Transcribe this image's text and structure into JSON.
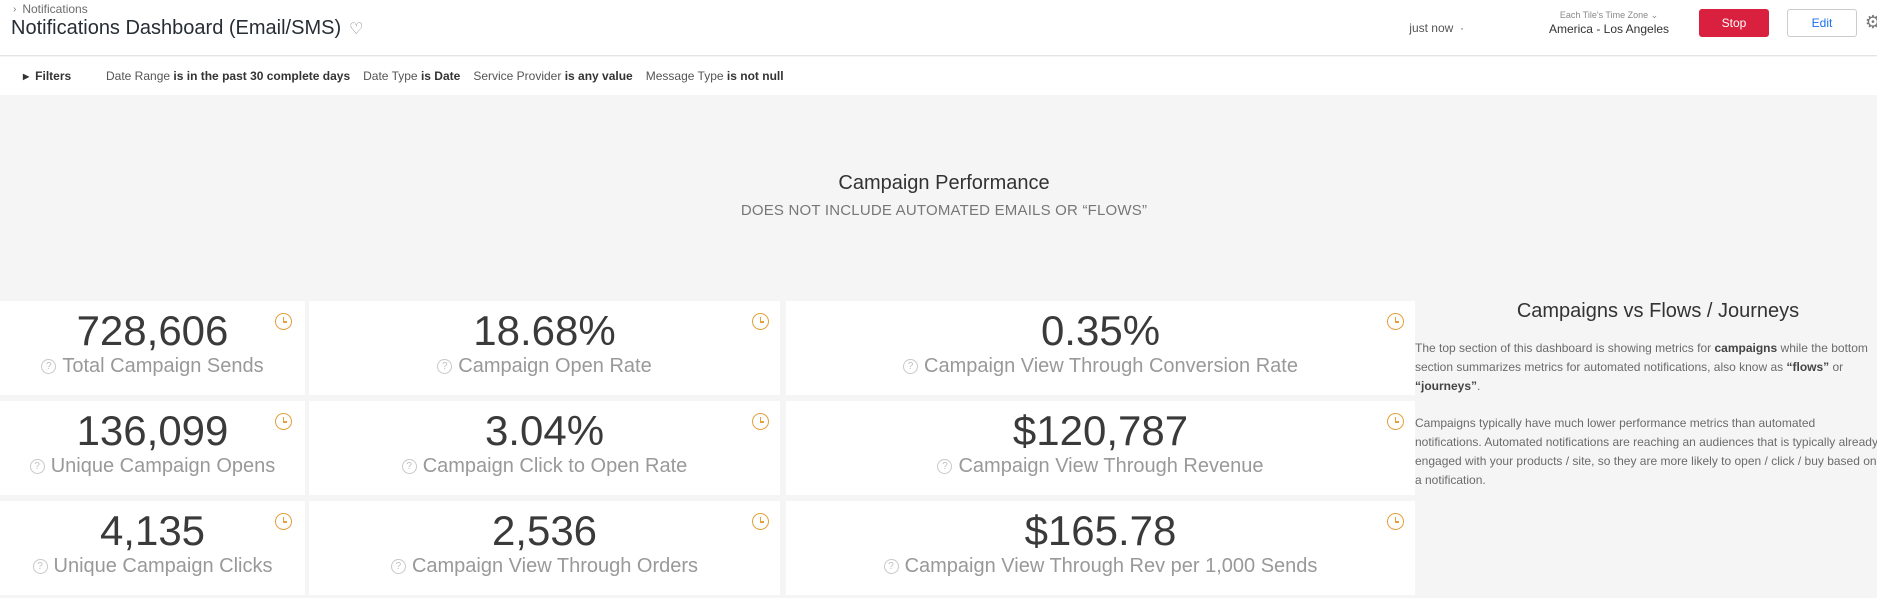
{
  "header": {
    "breadcrumb": "Notifications",
    "title": "Notifications Dashboard (Email/SMS)",
    "updated": "just now",
    "timezone_caption": "Each Tile's Time Zone",
    "timezone_value": "America - Los Angeles",
    "stop_label": "Stop",
    "edit_label": "Edit"
  },
  "filters": {
    "label": "Filters",
    "items": [
      {
        "name": "Date Range",
        "value": "is in the past 30 complete days"
      },
      {
        "name": "Date Type",
        "value": "is Date"
      },
      {
        "name": "Service Provider",
        "value": "is any value"
      },
      {
        "name": "Message Type",
        "value": "is not null"
      }
    ]
  },
  "section": {
    "title": "Campaign Performance",
    "subtitle": "DOES NOT INCLUDE AUTOMATED EMAILS OR “FLOWS”"
  },
  "tiles": [
    {
      "value": "728,606",
      "label": "Total Campaign Sends"
    },
    {
      "value": "18.68%",
      "label": "Campaign Open Rate"
    },
    {
      "value": "0.35%",
      "label": "Campaign View Through Conversion Rate"
    },
    {
      "value": "136,099",
      "label": "Unique Campaign Opens"
    },
    {
      "value": "3.04%",
      "label": "Campaign Click to Open Rate"
    },
    {
      "value": "$120,787",
      "label": "Campaign View Through Revenue"
    },
    {
      "value": "4,135",
      "label": "Unique Campaign Clicks"
    },
    {
      "value": "2,536",
      "label": "Campaign View Through Orders"
    },
    {
      "value": "$165.78",
      "label": "Campaign View Through Rev per 1,000 Sends"
    }
  ],
  "side": {
    "title": "Campaigns vs Flows / Journeys",
    "p1_a": "The top section of this dashboard is showing metrics for ",
    "p1_b": "campaigns",
    "p1_c": " while the bottom section summarizes metrics for automated notifications, also know as ",
    "p1_d": "“flows”",
    "p1_e": " or ",
    "p1_f": "“journeys”",
    "p1_g": ".",
    "p2": "Campaigns typically have much lower performance metrics than automated notifications. Automated notifications are reaching an audiences that is typically already engaged with your products / site, so they are more likely to open / click / buy based on a notification."
  },
  "icons": {
    "heart": "heart-icon",
    "gear": "gear-icon",
    "clock": "clock-icon",
    "help": "help-icon"
  },
  "colors": {
    "stop": "#d9203f",
    "edit_text": "#1a73e8",
    "clock": "#e3a03b"
  }
}
